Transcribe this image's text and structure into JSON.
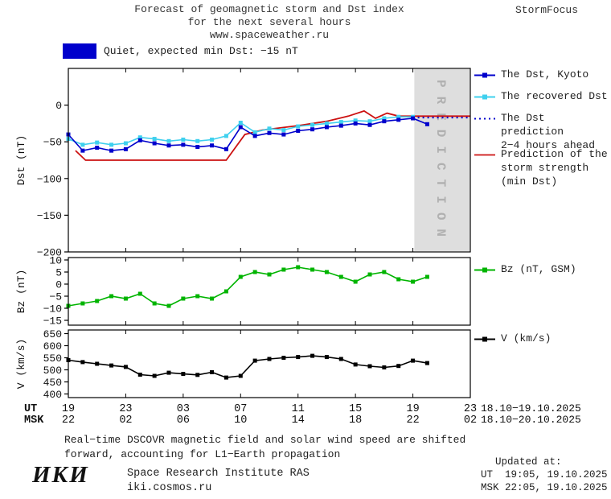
{
  "header": {
    "title_lines": [
      "Forecast of geomagnetic storm and Dst index",
      "for the next several hours",
      "www.spaceweather.ru"
    ],
    "brand": "StormFocus"
  },
  "status": {
    "label": "Quiet, expected min Dst: −15 nT",
    "swatch_color": "#0000cc"
  },
  "legend": {
    "dst_kyoto": "The Dst, Kyoto",
    "recovered": "The recovered Dst",
    "prediction": "The Dst prediction\n2−4 hours ahead",
    "storm": "Prediction of the\nstorm strength\n(min Dst)",
    "bz": "Bz (nT, GSM)",
    "v": "V (km/s)"
  },
  "footnote_lines": [
    "Real−time DSCOVR magnetic field and solar wind speed are shifted",
    "forward, accounting for L1−Earth propagation"
  ],
  "footer": {
    "logo": "ИКИ",
    "institute": "Space Research Institute RAS",
    "site": "iki.cosmos.ru",
    "updated_label": "Updated at:",
    "updated_ut": "UT  19:05, 19.10.2025",
    "updated_msk": "MSK 22:05, 19.10.2025"
  },
  "chart_data": {
    "type": "line",
    "title": "Forecast of geomagnetic storm and Dst index for the next several hours",
    "x_axis": {
      "span_hours": [
        0,
        28
      ],
      "tick_hours": [
        0,
        4,
        8,
        12,
        16,
        20,
        24,
        28
      ],
      "ut_row_label": "UT",
      "msk_row_label": "MSK",
      "ut_tick_labels": [
        "19",
        "23",
        "03",
        "07",
        "11",
        "15",
        "19",
        "23"
      ],
      "msk_tick_labels": [
        "22",
        "02",
        "06",
        "10",
        "14",
        "18",
        "22",
        "02"
      ],
      "ut_date_range": "18.10−19.10.2025",
      "msk_date_range": "18.10−20.10.2025"
    },
    "panels": [
      {
        "id": "dst",
        "ylabel": "Dst (nT)",
        "ylim": [
          -200,
          50
        ],
        "yticks": [
          0,
          -50,
          -100,
          -150,
          -200
        ],
        "band": {
          "start_hour": 24.1,
          "end_hour": 28,
          "label": "PREDICTION",
          "color": "#dedede",
          "label_color": "#b0b0b0"
        },
        "series": [
          {
            "name": "storm-prediction",
            "color": "#cc1111",
            "width": 1.8,
            "x": [
              0.5,
              1.2,
              11,
              12.3,
              13.5,
              16,
              18,
              19.5,
              20.6,
              21.4,
              22.2,
              23,
              28
            ],
            "y": [
              -62,
              -75,
              -75,
              -40,
              -34,
              -28,
              -22,
              -15,
              -8,
              -18,
              -11,
              -15,
              -15
            ]
          },
          {
            "name": "dst-prediction",
            "color": "#0000cc",
            "dash": "2,4",
            "width": 2,
            "x": [
              24,
              28
            ],
            "y": [
              -17,
              -17
            ]
          },
          {
            "name": "recovered-dst",
            "color": "#3fd0ee",
            "marker": true,
            "x": [
              0,
              1,
              2,
              3,
              4,
              5,
              6,
              7,
              8,
              9,
              10,
              11,
              12,
              13,
              14,
              15,
              16,
              17,
              18,
              19,
              20,
              21,
              22,
              23,
              24
            ],
            "y": [
              -46,
              -54,
              -51,
              -54,
              -52,
              -44,
              -46,
              -49,
              -47,
              -49,
              -47,
              -42,
              -24,
              -37,
              -32,
              -34,
              -29,
              -27,
              -25,
              -23,
              -21,
              -22,
              -18,
              -16,
              -16
            ]
          },
          {
            "name": "dst-kyoto",
            "color": "#0000cc",
            "marker": true,
            "x": [
              0,
              1,
              2,
              3,
              4,
              5,
              6,
              7,
              8,
              9,
              10,
              11,
              12,
              13,
              14,
              15,
              16,
              17,
              18,
              19,
              20,
              21,
              22,
              23,
              24,
              25
            ],
            "y": [
              -40,
              -62,
              -58,
              -62,
              -60,
              -48,
              -52,
              -55,
              -54,
              -57,
              -55,
              -60,
              -30,
              -42,
              -38,
              -40,
              -35,
              -33,
              -30,
              -28,
              -25,
              -27,
              -22,
              -20,
              -18,
              -26
            ]
          }
        ]
      },
      {
        "id": "bz",
        "ylabel": "Bz (nT)",
        "ylim": [
          -17,
          11
        ],
        "yticks": [
          10,
          5,
          0,
          -5,
          -10,
          -15
        ],
        "series": [
          {
            "name": "bz",
            "color": "#00b400",
            "marker": true,
            "x": [
              0,
              1,
              2,
              3,
              4,
              5,
              6,
              7,
              8,
              9,
              10,
              11,
              12,
              13,
              14,
              15,
              16,
              17,
              18,
              19,
              20,
              21,
              22,
              23,
              24,
              25
            ],
            "y": [
              -9,
              -8,
              -7,
              -5,
              -6,
              -4,
              -8,
              -9,
              -6,
              -5,
              -6,
              -3,
              3,
              5,
              4,
              6,
              7,
              6,
              5,
              3,
              1,
              4,
              5,
              2,
              1,
              3
            ]
          }
        ]
      },
      {
        "id": "v",
        "ylabel": "V (km/s)",
        "ylim": [
          385,
          665
        ],
        "yticks": [
          650,
          600,
          550,
          500,
          450,
          400
        ],
        "series": [
          {
            "name": "v",
            "color": "#000000",
            "marker": true,
            "x": [
              0,
              1,
              2,
              3,
              4,
              5,
              6,
              7,
              8,
              9,
              10,
              11,
              12,
              13,
              14,
              15,
              16,
              17,
              18,
              19,
              20,
              21,
              22,
              23,
              24,
              25
            ],
            "y": [
              540,
              532,
              525,
              518,
              512,
              480,
              475,
              488,
              483,
              479,
              490,
              468,
              475,
              538,
              545,
              550,
              553,
              558,
              553,
              545,
              522,
              515,
              510,
              516,
              538,
              528
            ]
          }
        ]
      }
    ]
  }
}
